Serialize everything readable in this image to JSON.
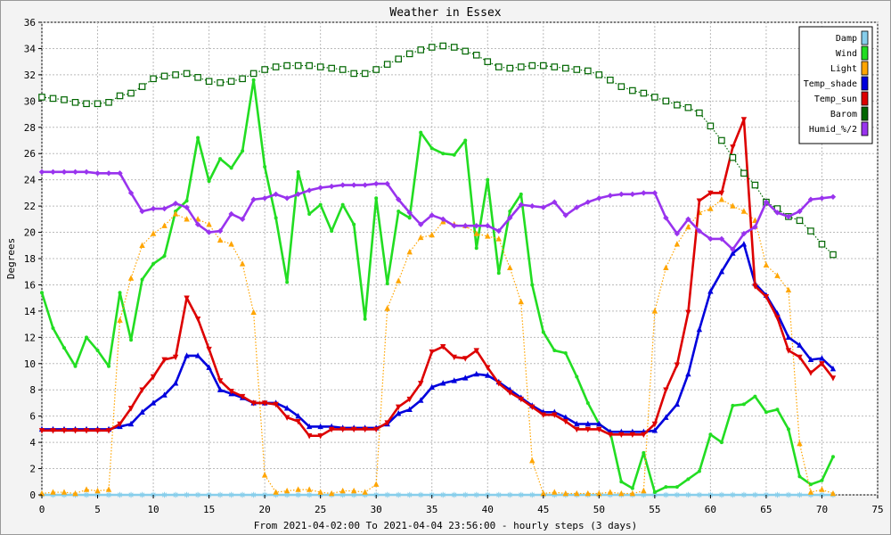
{
  "chart_data": {
    "type": "line",
    "title": "Weather in Essex",
    "xlabel": "From 2021-04-02:00 To 2021-04-04 23:56:00 - hourly steps (3 days)",
    "ylabel": "Degrees",
    "xlim": [
      0,
      75
    ],
    "ylim": [
      0,
      36
    ],
    "xticks": [
      0,
      5,
      10,
      15,
      20,
      25,
      30,
      35,
      40,
      45,
      50,
      55,
      60,
      65,
      70,
      75
    ],
    "yticks": [
      0,
      2,
      4,
      6,
      8,
      10,
      12,
      14,
      16,
      18,
      20,
      22,
      24,
      26,
      28,
      30,
      32,
      34,
      36
    ],
    "grid": true,
    "legend_position": "top-right",
    "series": [
      {
        "name": "Damp",
        "color": "#87ceeb",
        "style": "solid",
        "marker": "star",
        "values": [
          0,
          0,
          0,
          0,
          0,
          0,
          0,
          0,
          0,
          0,
          0,
          0,
          0,
          0,
          0,
          0,
          0,
          0,
          0,
          0,
          0,
          0,
          0,
          0,
          0,
          0,
          0,
          0,
          0,
          0,
          0,
          0,
          0,
          0,
          0,
          0,
          0,
          0,
          0,
          0,
          0,
          0,
          0,
          0,
          0,
          0,
          0,
          0,
          0,
          0,
          0,
          0,
          0,
          0,
          0,
          0,
          0,
          0,
          0,
          0,
          0,
          0,
          0,
          0,
          0,
          0,
          0,
          0,
          0,
          0,
          0,
          0
        ]
      },
      {
        "name": "Wind",
        "color": "#22dd22",
        "style": "solid",
        "marker": "dot",
        "values": [
          15.4,
          12.7,
          11.2,
          9.8,
          12.0,
          11.0,
          9.8,
          15.4,
          11.8,
          16.4,
          17.6,
          18.2,
          21.6,
          22.4,
          27.2,
          23.9,
          25.6,
          24.9,
          26.2,
          31.6,
          25.0,
          21.1,
          16.2,
          24.6,
          21.4,
          22.1,
          20.1,
          22.1,
          20.6,
          13.4,
          22.6,
          16.1,
          21.6,
          21.1,
          27.6,
          26.4,
          26.0,
          25.9,
          27.0,
          18.8,
          24.0,
          16.9,
          21.6,
          22.9,
          16.0,
          12.4,
          11.0,
          10.8,
          9.0,
          7.0,
          5.4,
          4.8,
          1.0,
          0.5,
          3.2,
          0.2,
          0.6,
          0.6,
          1.2,
          1.8,
          4.6,
          4.0,
          6.8,
          6.9,
          7.5,
          6.3,
          6.5,
          5.0,
          1.4,
          0.8,
          1.1,
          2.9
        ]
      },
      {
        "name": "Light",
        "color": "#ffa500",
        "style": "dotted",
        "marker": "triangle",
        "values": [
          0.1,
          0.2,
          0.2,
          0.1,
          0.4,
          0.3,
          0.4,
          13.3,
          16.5,
          19.0,
          19.9,
          20.5,
          21.4,
          21.0,
          21.0,
          20.6,
          19.4,
          19.1,
          17.6,
          13.9,
          1.5,
          0.2,
          0.3,
          0.4,
          0.4,
          0.2,
          0.1,
          0.3,
          0.3,
          0.2,
          0.8,
          14.2,
          16.3,
          18.5,
          19.6,
          19.8,
          20.8,
          20.6,
          20.5,
          19.9,
          19.7,
          19.5,
          17.3,
          14.7,
          2.6,
          0.1,
          0.2,
          0.1,
          0.1,
          0.1,
          0.1,
          0.2,
          0.1,
          0.1,
          0.3,
          14.0,
          17.3,
          19.1,
          20.4,
          21.5,
          21.8,
          22.5,
          22.0,
          21.6,
          20.9,
          17.5,
          16.7,
          15.6,
          3.9,
          0.2,
          0.4,
          0.1
        ]
      },
      {
        "name": "Temp_shade",
        "color": "#0000dd",
        "style": "solid",
        "marker": "triangle",
        "values": [
          5.0,
          5.0,
          5.0,
          5.0,
          5.0,
          5.0,
          5.0,
          5.2,
          5.4,
          6.3,
          7.0,
          7.6,
          8.5,
          10.6,
          10.6,
          9.7,
          8.0,
          7.7,
          7.4,
          7.0,
          7.0,
          7.0,
          6.6,
          6.0,
          5.2,
          5.2,
          5.2,
          5.1,
          5.1,
          5.1,
          5.1,
          5.4,
          6.2,
          6.5,
          7.2,
          8.2,
          8.5,
          8.7,
          8.9,
          9.2,
          9.1,
          8.6,
          8.0,
          7.4,
          6.8,
          6.3,
          6.3,
          5.9,
          5.4,
          5.4,
          5.4,
          4.8,
          4.8,
          4.8,
          4.8,
          4.9,
          5.9,
          6.9,
          9.2,
          12.6,
          15.5,
          17.0,
          18.4,
          19.1,
          16.1,
          15.2,
          13.8,
          12.0,
          11.4,
          10.3,
          10.4,
          9.6
        ]
      },
      {
        "name": "Temp_sun",
        "color": "#dd0000",
        "style": "solid",
        "marker": "inv-triangle",
        "values": [
          4.9,
          4.9,
          4.9,
          4.9,
          4.9,
          4.9,
          4.9,
          5.4,
          6.6,
          8.0,
          9.0,
          10.3,
          10.5,
          15.0,
          13.4,
          11.1,
          8.7,
          7.9,
          7.5,
          7.0,
          7.0,
          6.9,
          5.9,
          5.6,
          4.5,
          4.5,
          5.0,
          5.0,
          5.0,
          5.0,
          5.0,
          5.5,
          6.7,
          7.3,
          8.5,
          10.9,
          11.3,
          10.5,
          10.4,
          11.0,
          9.7,
          8.5,
          7.8,
          7.3,
          6.7,
          6.1,
          6.1,
          5.6,
          5.0,
          5.0,
          5.0,
          4.6,
          4.6,
          4.6,
          4.6,
          5.4,
          8.0,
          9.9,
          13.9,
          22.4,
          23.0,
          23.0,
          26.5,
          28.6,
          15.9,
          15.1,
          13.5,
          11.0,
          10.5,
          9.3,
          10.0,
          8.9
        ]
      },
      {
        "name": "Barom",
        "color": "#006600",
        "style": "dotted",
        "marker": "square",
        "values": [
          30.3,
          30.2,
          30.1,
          29.9,
          29.8,
          29.8,
          29.9,
          30.4,
          30.6,
          31.1,
          31.7,
          31.9,
          32.0,
          32.1,
          31.8,
          31.5,
          31.4,
          31.5,
          31.7,
          32.1,
          32.4,
          32.6,
          32.7,
          32.7,
          32.7,
          32.6,
          32.5,
          32.4,
          32.1,
          32.1,
          32.4,
          32.8,
          33.2,
          33.6,
          33.9,
          34.1,
          34.2,
          34.1,
          33.8,
          33.5,
          33.0,
          32.6,
          32.5,
          32.6,
          32.7,
          32.7,
          32.6,
          32.5,
          32.4,
          32.3,
          32.0,
          31.6,
          31.1,
          30.8,
          30.6,
          30.3,
          30.0,
          29.7,
          29.5,
          29.1,
          28.1,
          27.0,
          25.7,
          24.5,
          23.6,
          22.3,
          21.8,
          21.2,
          20.9,
          20.1,
          19.1,
          18.3
        ]
      },
      {
        "name": "Humid_%/2",
        "color": "#9933ee",
        "style": "solid",
        "marker": "diamond",
        "values": [
          24.6,
          24.6,
          24.6,
          24.6,
          24.6,
          24.5,
          24.5,
          24.5,
          23.0,
          21.6,
          21.8,
          21.8,
          22.2,
          21.9,
          20.6,
          20.0,
          20.1,
          21.4,
          21.0,
          22.5,
          22.6,
          22.9,
          22.6,
          22.9,
          23.2,
          23.4,
          23.5,
          23.6,
          23.6,
          23.6,
          23.7,
          23.7,
          22.5,
          21.5,
          20.6,
          21.3,
          21.0,
          20.5,
          20.5,
          20.5,
          20.5,
          20.1,
          21.1,
          22.1,
          22.0,
          21.9,
          22.3,
          21.3,
          21.9,
          22.3,
          22.6,
          22.8,
          22.9,
          22.9,
          23.0,
          23.0,
          21.1,
          19.9,
          21.0,
          20.1,
          19.5,
          19.5,
          18.7,
          19.9,
          20.4,
          22.3,
          21.5,
          21.2,
          21.6,
          22.5,
          22.6,
          22.7
        ]
      }
    ]
  }
}
